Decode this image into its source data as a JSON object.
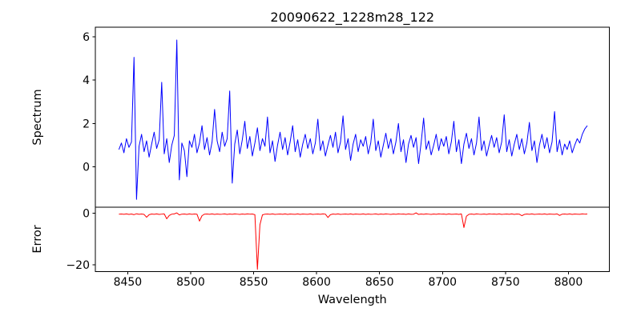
{
  "figure": {
    "background_color": "#ffffff",
    "text_color": "#000000",
    "axis_color": "#000000"
  },
  "chart_data": {
    "type": "line",
    "title": "20090622_1228m28_122",
    "xlabel": "Wavelength",
    "grid": false,
    "legend": null,
    "xlim": [
      8424.3,
      8832.5
    ],
    "x_ticks": [
      8450,
      8500,
      8550,
      8600,
      8650,
      8700,
      8750,
      8800
    ],
    "panels": [
      {
        "name": "spectrum",
        "ylabel": "Spectrum",
        "ylim": [
          -1.86,
          6.44
        ],
        "y_ticks": [
          0,
          2,
          4,
          6
        ],
        "line_color": "#0000ff",
        "x_start": 8443,
        "x_step": 2,
        "values": [
          0.8,
          1.1,
          0.65,
          1.3,
          0.9,
          1.15,
          5.05,
          -1.5,
          0.95,
          1.5,
          0.7,
          1.2,
          0.45,
          1.05,
          1.6,
          0.85,
          1.25,
          3.9,
          0.6,
          1.3,
          0.2,
          1.0,
          1.45,
          5.85,
          -0.6,
          1.1,
          0.75,
          -0.45,
          1.2,
          0.9,
          1.5,
          0.65,
          1.1,
          1.9,
          0.8,
          1.35,
          0.55,
          1.15,
          2.65,
          1.2,
          0.7,
          1.6,
          0.95,
          1.3,
          3.5,
          -0.75,
          1.05,
          1.7,
          0.6,
          1.25,
          2.1,
          0.85,
          1.4,
          0.5,
          1.1,
          1.8,
          0.75,
          1.3,
          0.95,
          2.3,
          0.65,
          1.2,
          0.25,
          1.0,
          1.6,
          0.8,
          1.35,
          0.55,
          1.15,
          1.9,
          0.7,
          1.25,
          0.45,
          1.05,
          1.5,
          0.85,
          1.3,
          0.6,
          1.1,
          2.2,
          0.75,
          1.2,
          0.5,
          1.0,
          1.45,
          0.9,
          1.6,
          0.65,
          1.15,
          2.35,
          0.8,
          1.3,
          0.3,
          1.05,
          1.5,
          0.7,
          1.25,
          0.95,
          1.4,
          0.6,
          1.1,
          2.2,
          0.75,
          1.2,
          0.45,
          1.0,
          1.55,
          0.85,
          1.3,
          0.6,
          1.15,
          2.0,
          0.7,
          1.25,
          0.2,
          1.05,
          1.45,
          0.9,
          1.35,
          0.15,
          1.1,
          2.25,
          0.8,
          1.2,
          0.55,
          1.0,
          1.5,
          0.75,
          1.3,
          0.95,
          1.4,
          0.6,
          1.15,
          2.1,
          0.7,
          1.25,
          0.15,
          1.05,
          1.55,
          0.85,
          1.3,
          0.55,
          1.1,
          2.3,
          0.75,
          1.2,
          0.5,
          1.0,
          1.45,
          0.9,
          1.35,
          0.65,
          1.15,
          2.4,
          0.7,
          1.25,
          0.5,
          1.05,
          1.5,
          0.8,
          1.3,
          0.6,
          1.1,
          2.05,
          0.75,
          1.2,
          0.2,
          1.0,
          1.5,
          0.85,
          1.35,
          0.65,
          1.15,
          2.55,
          0.7,
          1.25,
          0.55,
          1.05,
          0.8,
          1.2,
          0.65,
          1.0,
          1.3,
          1.1,
          1.5,
          1.75,
          1.9
        ]
      },
      {
        "name": "error",
        "ylabel": "Error",
        "ylim": [
          -22.7,
          2.3
        ],
        "y_ticks": [
          0,
          -20
        ],
        "line_color": "#ff0000",
        "x_start": 8443,
        "x_step": 2,
        "values": [
          -0.4,
          -0.35,
          -0.45,
          -0.3,
          -0.5,
          -0.35,
          -0.6,
          -0.25,
          -0.45,
          -0.35,
          -0.5,
          -1.6,
          -0.6,
          -0.35,
          -0.45,
          -0.3,
          -0.5,
          -0.4,
          -0.3,
          -2.2,
          -0.9,
          -0.4,
          -0.3,
          0.1,
          -0.7,
          -0.4,
          -0.35,
          -0.5,
          -0.3,
          -0.45,
          -0.35,
          -0.4,
          -3.1,
          -1.0,
          -0.4,
          -0.35,
          -0.45,
          -0.3,
          -0.5,
          -0.35,
          -0.45,
          -0.4,
          -0.3,
          -0.5,
          -0.35,
          -0.45,
          -0.3,
          -0.4,
          -0.5,
          -0.35,
          -0.45,
          -0.3,
          -0.4,
          -0.35,
          -0.6,
          -21.8,
          -4.5,
          -0.7,
          -0.4,
          -0.35,
          -0.45,
          -0.3,
          -0.5,
          -0.4,
          -0.35,
          -0.45,
          -0.3,
          -0.5,
          -0.35,
          -0.4,
          -0.45,
          -0.3,
          -0.5,
          -0.35,
          -0.4,
          -0.45,
          -0.3,
          -0.5,
          -0.4,
          -0.35,
          -0.45,
          -0.3,
          -0.4,
          -1.7,
          -0.6,
          -0.35,
          -0.45,
          -0.3,
          -0.5,
          -0.4,
          -0.35,
          -0.45,
          -0.3,
          -0.5,
          -0.35,
          -0.4,
          -0.45,
          -0.3,
          -0.5,
          -0.35,
          -0.45,
          -0.4,
          -0.3,
          -0.5,
          -0.35,
          -0.45,
          -0.3,
          -0.4,
          -0.5,
          -0.35,
          -0.45,
          -0.3,
          -0.4,
          -0.35,
          -0.5,
          -0.3,
          -0.45,
          -0.4,
          0.1,
          -0.5,
          -0.35,
          -0.45,
          -0.3,
          -0.4,
          -0.5,
          -0.35,
          -0.45,
          -0.3,
          -0.4,
          -0.35,
          -0.5,
          -0.3,
          -0.45,
          -0.4,
          -0.35,
          -0.5,
          -0.3,
          -5.6,
          -1.2,
          -0.45,
          -0.35,
          -0.5,
          -0.3,
          -0.4,
          -0.45,
          -0.35,
          -0.5,
          -0.3,
          -0.4,
          -0.35,
          -0.45,
          -0.3,
          -0.5,
          -0.4,
          -0.35,
          -0.45,
          -0.3,
          -0.5,
          -0.35,
          -0.4,
          -1.0,
          -0.5,
          -0.35,
          -0.45,
          -0.3,
          -0.5,
          -0.4,
          -0.35,
          -0.45,
          -0.3,
          -0.5,
          -0.35,
          -0.4,
          -0.45,
          -0.3,
          -0.9,
          -0.4,
          -0.35,
          -0.45,
          -0.3,
          -0.5,
          -0.35,
          -0.4,
          -0.45,
          -0.3,
          -0.4,
          -0.35
        ]
      }
    ]
  }
}
